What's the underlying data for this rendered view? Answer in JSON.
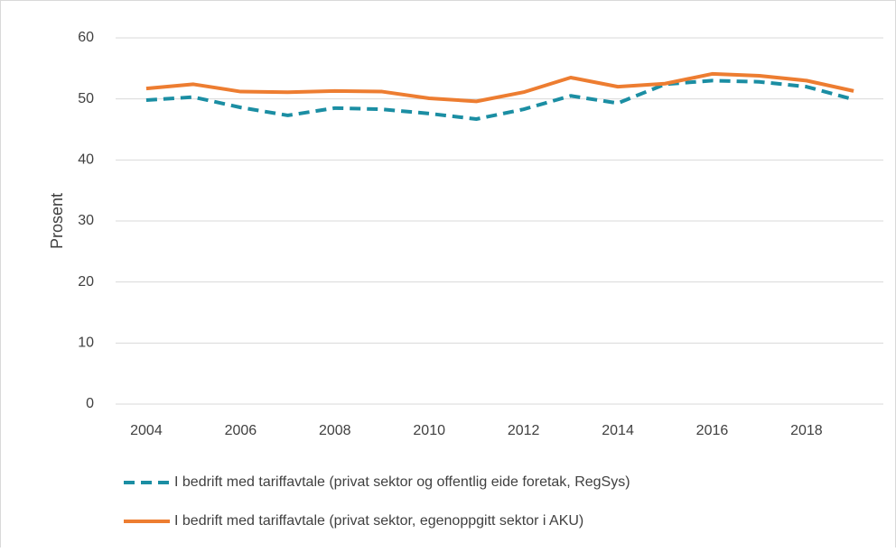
{
  "chart_data": {
    "type": "line",
    "ylabel": "Prosent",
    "x": [
      2004,
      2005,
      2006,
      2007,
      2008,
      2009,
      2010,
      2011,
      2012,
      2013,
      2014,
      2015,
      2016,
      2017,
      2018,
      2019
    ],
    "series": [
      {
        "name": "I bedrift med tariffavtale (privat sektor og offentlig eide foretak, RegSys)",
        "color": "#1b8ea3",
        "dashed": true,
        "values": [
          49.8,
          50.3,
          48.6,
          47.3,
          48.5,
          48.3,
          47.6,
          46.7,
          48.3,
          50.5,
          49.3,
          52.4,
          53.0,
          52.8,
          52.0,
          49.9
        ]
      },
      {
        "name": "I bedrift med tariffavtale (privat sektor, egenoppgitt sektor i AKU)",
        "color": "#ed7d31",
        "dashed": false,
        "values": [
          51.7,
          52.4,
          51.2,
          51.1,
          51.3,
          51.2,
          50.1,
          49.6,
          51.1,
          53.5,
          52.0,
          52.5,
          54.1,
          53.8,
          53.0,
          51.3
        ]
      }
    ],
    "xlim": [
      2003.35,
      2019.63
    ],
    "xticks": [
      2004,
      2006,
      2008,
      2010,
      2012,
      2014,
      2016,
      2018
    ],
    "ylim": [
      0,
      60
    ],
    "yticks": [
      0,
      10,
      20,
      30,
      40,
      50,
      60
    ],
    "grid": true,
    "legend": "bottom"
  }
}
